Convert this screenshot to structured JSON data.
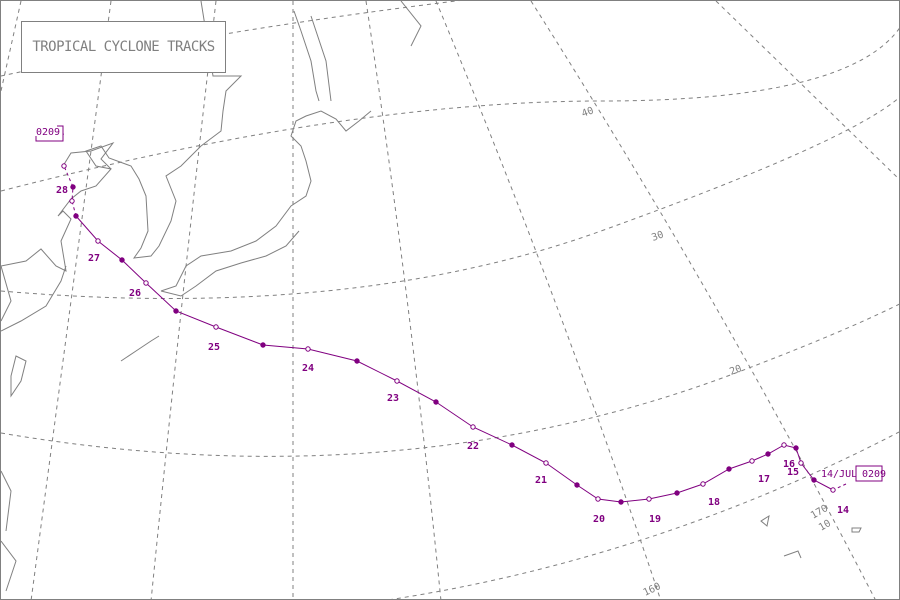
{
  "title": "TROPICAL CYCLONE TRACKS",
  "colors": {
    "track": "#800080",
    "grid": "#808080",
    "coast": "#808080",
    "background": "#ffffff"
  },
  "storm": {
    "id_label_start": "0209",
    "id_label_end": "0209.",
    "start_date_label": "14/JUL",
    "day_labels": [
      "14",
      "15",
      "16",
      "17",
      "18",
      "19",
      "20",
      "21",
      "22",
      "23",
      "24",
      "25",
      "26",
      "27",
      "28"
    ]
  },
  "grid_labels": {
    "lat_40": "40",
    "lat_30": "30",
    "lat_20": "20",
    "lat_10": "10",
    "lon_160": "160",
    "lon_170": "170"
  }
}
